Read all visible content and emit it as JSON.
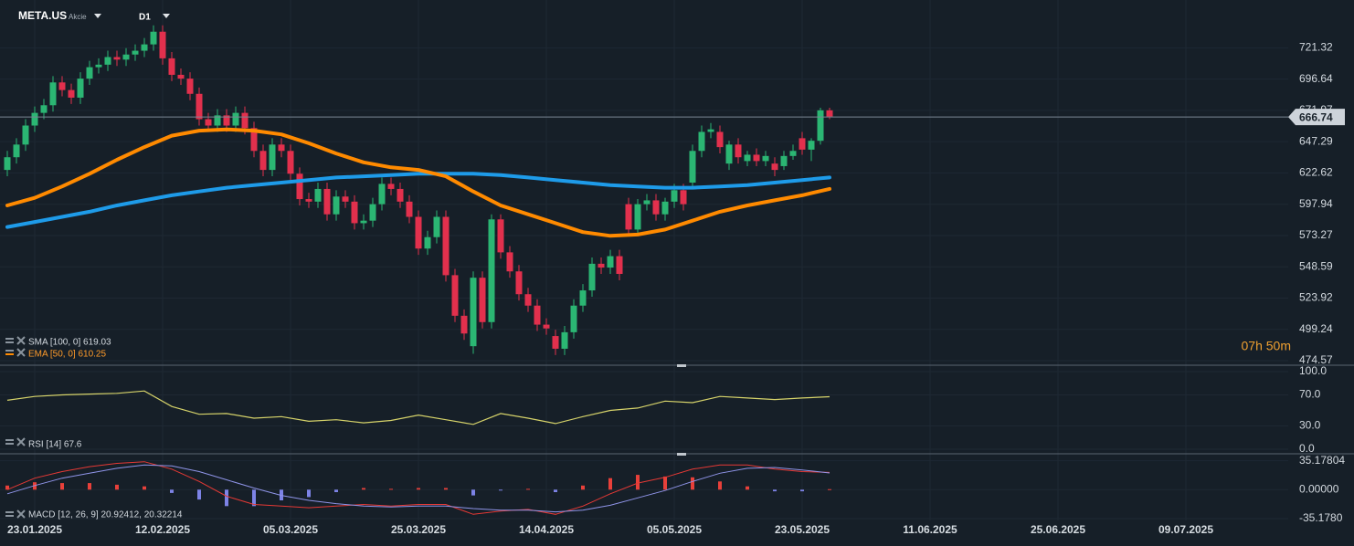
{
  "header": {
    "symbol": "META.US",
    "asset_type": "Akcie",
    "timeframe": "D1"
  },
  "chart_data": [
    {
      "type": "candlestick",
      "up_color": "#2bb673",
      "down_color": "#e2304d",
      "candles": [
        [
          625,
          640,
          620,
          635
        ],
        [
          635,
          650,
          630,
          645
        ],
        [
          645,
          665,
          640,
          660
        ],
        [
          660,
          675,
          655,
          670
        ],
        [
          670,
          681,
          665,
          676
        ],
        [
          676,
          699,
          671,
          694
        ],
        [
          694,
          699,
          683,
          688
        ],
        [
          688,
          693,
          677,
          682
        ],
        [
          682,
          702,
          677,
          697
        ],
        [
          697,
          711,
          692,
          706
        ],
        [
          706,
          713,
          701,
          708
        ],
        [
          708,
          719,
          703,
          714
        ],
        [
          714,
          719,
          707,
          712
        ],
        [
          712,
          721,
          707,
          716
        ],
        [
          716,
          724,
          711,
          719
        ],
        [
          719,
          729,
          714,
          724
        ],
        [
          724,
          739,
          719,
          734
        ],
        [
          734,
          739,
          708,
          713
        ],
        [
          713,
          718,
          695,
          700
        ],
        [
          700,
          705,
          692,
          697
        ],
        [
          697,
          702,
          680,
          685
        ],
        [
          685,
          690,
          660,
          665
        ],
        [
          665,
          670,
          655,
          660
        ],
        [
          660,
          673,
          655,
          668
        ],
        [
          668,
          673,
          655,
          660
        ],
        [
          660,
          675,
          655,
          670
        ],
        [
          670,
          675,
          653,
          658
        ],
        [
          658,
          663,
          635,
          640
        ],
        [
          640,
          645,
          620,
          625
        ],
        [
          625,
          650,
          620,
          645
        ],
        [
          645,
          650,
          635,
          640
        ],
        [
          640,
          645,
          617,
          622
        ],
        [
          622,
          627,
          597,
          602
        ],
        [
          602,
          607,
          595,
          600
        ],
        [
          600,
          615,
          595,
          610
        ],
        [
          610,
          615,
          585,
          590
        ],
        [
          590,
          609,
          585,
          604
        ],
        [
          604,
          609,
          595,
          600
        ],
        [
          600,
          605,
          578,
          583
        ],
        [
          583,
          590,
          578,
          585
        ],
        [
          585,
          603,
          580,
          598
        ],
        [
          598,
          619,
          593,
          614
        ],
        [
          614,
          619,
          605,
          610
        ],
        [
          610,
          615,
          595,
          600
        ],
        [
          600,
          605,
          583,
          588
        ],
        [
          588,
          593,
          558,
          563
        ],
        [
          563,
          577,
          558,
          572
        ],
        [
          572,
          593,
          567,
          588
        ],
        [
          588,
          593,
          537,
          542
        ],
        [
          542,
          547,
          505,
          510
        ],
        [
          510,
          515,
          491,
          496
        ],
        [
          486,
          545,
          480,
          540
        ],
        [
          540,
          545,
          500,
          505
        ],
        [
          505,
          590,
          500,
          586
        ],
        [
          586,
          590,
          555,
          560
        ],
        [
          560,
          565,
          540,
          545
        ],
        [
          545,
          550,
          522,
          527
        ],
        [
          527,
          532,
          513,
          518
        ],
        [
          518,
          523,
          498,
          503
        ],
        [
          503,
          508,
          495,
          500
        ],
        [
          494,
          499,
          479,
          484
        ],
        [
          484,
          502,
          479,
          497
        ],
        [
          497,
          523,
          492,
          518
        ],
        [
          518,
          535,
          513,
          530
        ],
        [
          530,
          556,
          525,
          551
        ],
        [
          551,
          556,
          543,
          548
        ],
        [
          548,
          562,
          543,
          557
        ],
        [
          557,
          562,
          538,
          543
        ],
        [
          598,
          603,
          573,
          578
        ],
        [
          578,
          602,
          573,
          598
        ],
        [
          598,
          606,
          593,
          601
        ],
        [
          601,
          606,
          585,
          590
        ],
        [
          590,
          603,
          585,
          600
        ],
        [
          600,
          614,
          595,
          609
        ],
        [
          609,
          614,
          593,
          598
        ],
        [
          615,
          645,
          610,
          640
        ],
        [
          640,
          660,
          635,
          655
        ],
        [
          655,
          662,
          650,
          657
        ],
        [
          655,
          660,
          638,
          643
        ],
        [
          630,
          648,
          625,
          645
        ],
        [
          645,
          650,
          630,
          635
        ],
        [
          632,
          640,
          628,
          637
        ],
        [
          637,
          642,
          628,
          632
        ],
        [
          632,
          640,
          628,
          636
        ],
        [
          630,
          635,
          620,
          625
        ],
        [
          628,
          640,
          625,
          636
        ],
        [
          636,
          645,
          633,
          640
        ],
        [
          650,
          655,
          637,
          641
        ],
        [
          641,
          650,
          632,
          648
        ],
        [
          648,
          674,
          645,
          672
        ],
        [
          672,
          674,
          665,
          667
        ]
      ],
      "x": [
        0,
        3,
        6,
        9,
        12,
        15,
        18,
        21,
        24,
        27,
        30,
        33,
        36,
        39,
        42,
        45,
        48,
        51,
        54,
        57,
        60,
        63,
        66,
        69,
        72,
        75,
        78,
        81,
        84,
        87,
        90
      ],
      "series": [
        {
          "name": "SMA [100, 0] 619.03",
          "color": "#1e9be9",
          "values": [
            580,
            584,
            588,
            592,
            597,
            601,
            605,
            608,
            611,
            613,
            615,
            617,
            619,
            620,
            621,
            622,
            622,
            622,
            621,
            619,
            617,
            615,
            613,
            612,
            611,
            611,
            612,
            613,
            615,
            617,
            619
          ]
        },
        {
          "name": "EMA [50, 0] 610.25",
          "color": "#ff8a00",
          "values": [
            597,
            603,
            612,
            622,
            633,
            643,
            652,
            656,
            657,
            656,
            653,
            646,
            638,
            631,
            627,
            625,
            620,
            608,
            597,
            590,
            583,
            576,
            573,
            574,
            578,
            585,
            592,
            597,
            601,
            605,
            610
          ]
        }
      ],
      "ylim": [
        471,
        759
      ],
      "yticks": [
        721.32,
        696.64,
        671.97,
        647.29,
        622.62,
        597.94,
        573.27,
        548.59,
        523.92,
        499.24,
        474.57
      ],
      "xlim": [
        -0.8,
        140.2
      ],
      "xticks": [
        {
          "value": 3,
          "label": "23.01.2025"
        },
        {
          "value": 17,
          "label": "12.02.2025"
        },
        {
          "value": 31,
          "label": "05.03.2025"
        },
        {
          "value": 45,
          "label": "25.03.2025"
        },
        {
          "value": 59,
          "label": "14.04.2025"
        },
        {
          "value": 73,
          "label": "05.05.2025"
        },
        {
          "value": 87,
          "label": "23.05.2025"
        },
        {
          "value": 101,
          "label": "11.06.2025"
        },
        {
          "value": 115,
          "label": "25.06.2025"
        },
        {
          "value": 129,
          "label": "09.07.2025"
        }
      ],
      "current_price": 666.74,
      "countdown": "07h 50m"
    },
    {
      "type": "line",
      "title": "RSI [14] 67.6",
      "x": [
        0,
        3,
        6,
        9,
        12,
        15,
        18,
        21,
        24,
        27,
        30,
        33,
        36,
        39,
        42,
        45,
        48,
        51,
        54,
        57,
        60,
        63,
        66,
        69,
        72,
        75,
        78,
        81,
        84,
        87,
        90
      ],
      "series": [
        {
          "color": "#d6d36a",
          "values": [
            63,
            68,
            70,
            71,
            72,
            75,
            55,
            45,
            46,
            40,
            42,
            36,
            38,
            34,
            37,
            44,
            38,
            32,
            46,
            40,
            33,
            42,
            50,
            53,
            62,
            60,
            68,
            66,
            64,
            66,
            67.6
          ]
        }
      ],
      "ylim": [
        -5.9,
        108.2
      ],
      "yticks": [
        {
          "value": 100,
          "label": "100.0"
        },
        {
          "value": 70,
          "label": "70.0"
        },
        {
          "value": 30,
          "label": "30.0"
        },
        {
          "value": 0,
          "label": "0.0"
        }
      ]
    },
    {
      "type": "macd",
      "title": "MACD [12, 26, 9] 20.92412, 20.32214",
      "x": [
        0,
        3,
        6,
        9,
        12,
        15,
        18,
        21,
        24,
        27,
        30,
        33,
        36,
        39,
        42,
        45,
        48,
        51,
        54,
        57,
        60,
        63,
        66,
        69,
        72,
        75,
        78,
        81,
        84,
        87,
        90
      ],
      "series": [
        {
          "color": "#e53935",
          "values": [
            0,
            14,
            22,
            28,
            32,
            34,
            25,
            10,
            -8,
            -18,
            -20,
            -22,
            -20,
            -18,
            -20,
            -18,
            -18,
            -30,
            -26,
            -24,
            -30,
            -20,
            -5,
            8,
            15,
            25,
            30,
            30,
            25,
            22,
            20.92412
          ]
        },
        {
          "color": "#8f94e8",
          "values": [
            -5,
            5,
            14,
            20,
            26,
            30,
            29,
            22,
            12,
            2,
            -7,
            -13,
            -17,
            -20,
            -21,
            -20,
            -20,
            -23,
            -25,
            -25,
            -27,
            -25,
            -19,
            -10,
            -1,
            10,
            20,
            26,
            27,
            24,
            20.32214
          ]
        }
      ],
      "histogram": {
        "positive_color": "#e8403a",
        "negative_color": "#7d83e6",
        "values": [
          5,
          9,
          8,
          8,
          6,
          4,
          -4,
          -12,
          -20,
          -20,
          -13,
          -9,
          -3,
          2,
          1,
          2,
          2,
          -7,
          -1,
          1,
          -3,
          5,
          14,
          18,
          16,
          15,
          10,
          4,
          -2,
          -2,
          0.6
        ]
      },
      "ylim": [
        -37.4,
        43.6
      ],
      "yticks": [
        35.17804,
        {
          "value": 0,
          "label": "0.00000"
        },
        {
          "value": -35.178,
          "label": "-35.1780"
        }
      ]
    }
  ]
}
